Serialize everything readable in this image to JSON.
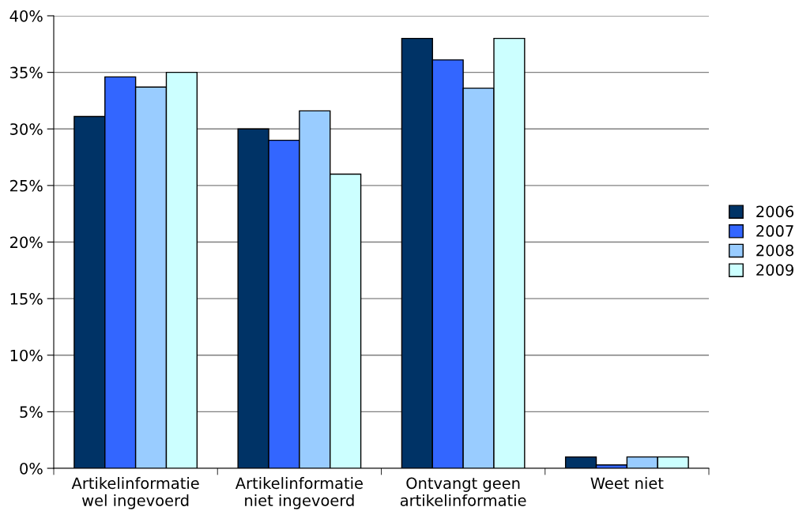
{
  "chart_data": {
    "type": "bar",
    "categories": [
      "Artikelinformatie\nwel ingevoerd",
      "Artikelinformatie\nniet ingevoerd",
      "Ontvangt geen\nartikelinformatie",
      "Weet niet"
    ],
    "series": [
      {
        "name": "2006",
        "color": "#003366",
        "values": [
          31.1,
          30.0,
          38.0,
          1.0
        ]
      },
      {
        "name": "2007",
        "color": "#3366ff",
        "values": [
          34.6,
          29.0,
          36.1,
          0.3
        ]
      },
      {
        "name": "2008",
        "color": "#99ccff",
        "values": [
          33.7,
          31.6,
          33.6,
          1.0
        ]
      },
      {
        "name": "2009",
        "color": "#ccffff",
        "values": [
          35.0,
          26.0,
          38.0,
          1.0
        ]
      }
    ],
    "ylim": [
      0,
      40
    ],
    "yticks": [
      {
        "value": 0,
        "label": "0%"
      },
      {
        "value": 5,
        "label": "5%"
      },
      {
        "value": 10,
        "label": "10%"
      },
      {
        "value": 15,
        "label": "15%"
      },
      {
        "value": 20,
        "label": "20%"
      },
      {
        "value": 25,
        "label": "25%"
      },
      {
        "value": 30,
        "label": "30%"
      },
      {
        "value": 35,
        "label": "35%"
      },
      {
        "value": 40,
        "label": "40%"
      }
    ],
    "grid": "y",
    "legend": "right"
  }
}
